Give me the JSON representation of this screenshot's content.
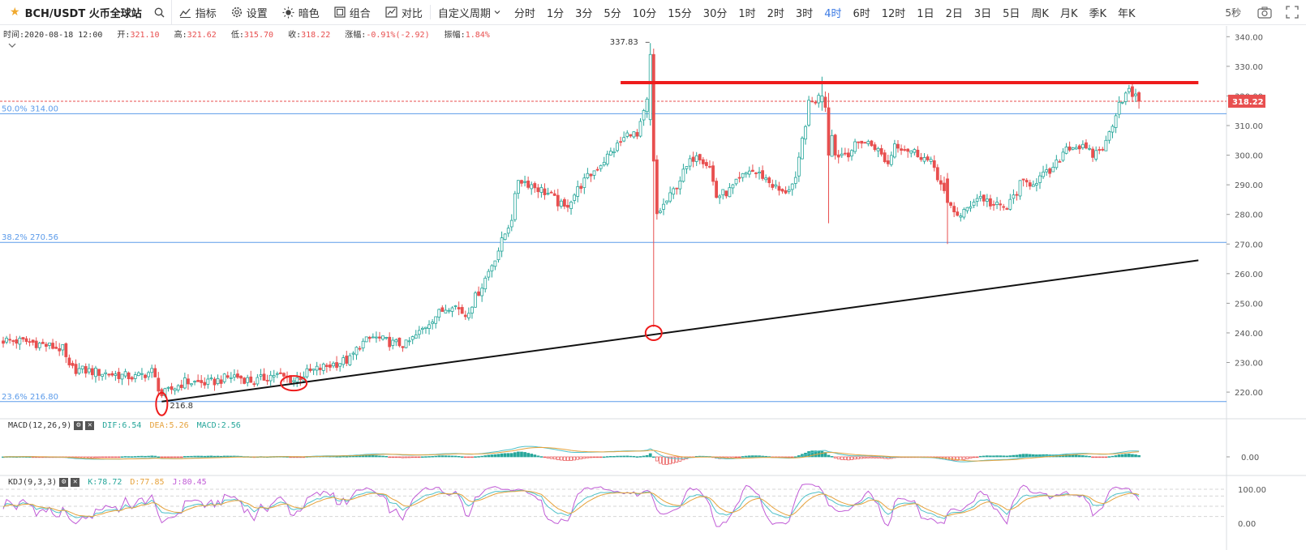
{
  "toolbar": {
    "symbol": "BCH/USDT 火币全球站",
    "buttons": [
      {
        "icon": "indicator-icon",
        "label": "指标"
      },
      {
        "icon": "gear-icon",
        "label": "设置"
      },
      {
        "icon": "sun-icon",
        "label": "暗色"
      },
      {
        "icon": "layout-icon",
        "label": "组合"
      },
      {
        "icon": "compare-icon",
        "label": "对比"
      }
    ],
    "custom_period": "自定义周期",
    "periods": [
      "分时",
      "1分",
      "3分",
      "5分",
      "10分",
      "15分",
      "30分",
      "1时",
      "2时",
      "3时",
      "4时",
      "6时",
      "12时",
      "1日",
      "2日",
      "3日",
      "5日",
      "周K",
      "月K",
      "季K",
      "年K"
    ],
    "active_period": "4时",
    "refresh": "5秒"
  },
  "info_bar": {
    "time_label": "时间:",
    "time": "2020-08-18 12:00",
    "open_label": "开:",
    "open": "321.10",
    "high_label": "高:",
    "high": "321.62",
    "low_label": "低:",
    "low": "315.70",
    "close_label": "收:",
    "close": "318.22",
    "change_label": "涨幅:",
    "change": "-0.91%(-2.92)",
    "amplitude_label": "振幅:",
    "amplitude": "1.84%"
  },
  "macd_legend": {
    "name": "MACD(12,26,9)",
    "dif": "DIF:6.54",
    "dea": "DEA:5.26",
    "macd": "MACD:2.56"
  },
  "kdj_legend": {
    "name": "KDJ(9,3,3)",
    "k": "K:78.72",
    "d": "D:77.85",
    "j": "J:80.45"
  },
  "colors": {
    "up": "#26a69a",
    "down": "#e84f4f",
    "fib": "#5b9bea",
    "trend": "#111111",
    "resistance": "#ee1c1c",
    "dif": "#4fc1c9",
    "dea": "#e6a23c",
    "k": "#4fc1c9",
    "d": "#e6a23c",
    "j": "#c05bd6"
  },
  "chart_data": {
    "type": "candlestick",
    "title": "BCH/USDT 火币全球站",
    "timeframe": "4时",
    "y_ticks": [
      "340.00",
      "330.00",
      "320.00",
      "310.00",
      "300.00",
      "290.00",
      "280.00",
      "270.00",
      "260.00",
      "250.00",
      "240.00",
      "230.00",
      "220.00"
    ],
    "ylim": [
      211,
      342
    ],
    "last_price": "318.22",
    "fib_levels": [
      {
        "label": "50.0% 314.00",
        "value": 314.0
      },
      {
        "label": "38.2% 270.56",
        "value": 270.56
      },
      {
        "label": "23.6% 216.80",
        "value": 216.8
      }
    ],
    "annotations": [
      {
        "label": "337.83",
        "value": 337.83
      },
      {
        "label": "216.8",
        "value": 216.8
      }
    ],
    "close_anchors": [
      [
        0,
        237.5
      ],
      [
        8,
        237.0
      ],
      [
        18,
        234.5
      ],
      [
        20,
        228.0
      ],
      [
        30,
        226.5
      ],
      [
        40,
        225.0
      ],
      [
        45,
        227.0
      ],
      [
        48,
        219.0
      ],
      [
        55,
        223.5
      ],
      [
        62,
        223.0
      ],
      [
        70,
        225.5
      ],
      [
        76,
        223.5
      ],
      [
        82,
        226.0
      ],
      [
        88,
        224.0
      ],
      [
        92,
        226.5
      ],
      [
        100,
        229.5
      ],
      [
        105,
        231.0
      ],
      [
        108,
        236.0
      ],
      [
        112,
        238.5
      ],
      [
        118,
        236.5
      ],
      [
        122,
        236.0
      ],
      [
        126,
        240.0
      ],
      [
        130,
        245.0
      ],
      [
        136,
        250.0
      ],
      [
        140,
        246.0
      ],
      [
        145,
        256.0
      ],
      [
        150,
        268.0
      ],
      [
        154,
        279.0
      ],
      [
        156,
        292.0
      ],
      [
        160,
        290.0
      ],
      [
        165,
        287.0
      ],
      [
        170,
        282.0
      ],
      [
        175,
        290.0
      ],
      [
        180,
        296.0
      ],
      [
        185,
        302.0
      ],
      [
        190,
        308.0
      ],
      [
        192,
        306.0
      ],
      [
        195,
        318.0
      ],
      [
        196,
        334.0
      ],
      [
        197,
        298.0
      ],
      [
        198,
        280.0
      ],
      [
        202,
        286.0
      ],
      [
        206,
        294.0
      ],
      [
        210,
        301.0
      ],
      [
        214,
        296.0
      ],
      [
        216,
        286.0
      ],
      [
        220,
        288.0
      ],
      [
        226,
        295.0
      ],
      [
        230,
        293.0
      ],
      [
        236,
        287.0
      ],
      [
        240,
        291.0
      ],
      [
        242,
        305.0
      ],
      [
        244,
        317.0
      ],
      [
        247,
        319.5
      ],
      [
        250,
        316.0
      ],
      [
        252,
        300.0
      ],
      [
        256,
        301.0
      ],
      [
        260,
        305.0
      ],
      [
        264,
        303.0
      ],
      [
        268,
        297.0
      ],
      [
        270,
        304.0
      ],
      [
        274,
        302.0
      ],
      [
        278,
        300.0
      ],
      [
        282,
        296.0
      ],
      [
        286,
        284.0
      ],
      [
        290,
        279.0
      ],
      [
        294,
        285.0
      ],
      [
        296,
        286.0
      ],
      [
        300,
        283.0
      ],
      [
        304,
        282.0
      ],
      [
        308,
        290.0
      ],
      [
        312,
        291.0
      ],
      [
        318,
        295.0
      ],
      [
        322,
        303.0
      ],
      [
        326,
        303.0
      ],
      [
        330,
        300.0
      ],
      [
        334,
        304.0
      ],
      [
        338,
        318.0
      ],
      [
        341,
        321.5
      ],
      [
        344,
        318.22
      ]
    ],
    "special_candles": [
      {
        "index": 196,
        "open": 312,
        "high": 337.83,
        "low": 310,
        "close": 334
      },
      {
        "index": 197,
        "open": 334,
        "high": 336,
        "low": 242,
        "close": 298
      },
      {
        "index": 248,
        "open": 318,
        "high": 326.5,
        "low": 315,
        "close": 320
      },
      {
        "index": 250,
        "open": 316,
        "high": 321,
        "low": 277,
        "close": 300
      },
      {
        "index": 286,
        "open": 292,
        "high": 294,
        "low": 270,
        "close": 284
      }
    ],
    "trend_line": {
      "from": [
        48,
        216.8
      ],
      "to": [
        362,
        264.5
      ]
    },
    "resistance_line": {
      "from": [
        187,
        324.5
      ],
      "to": [
        362,
        324.5
      ]
    },
    "circles": [
      {
        "index": 48,
        "value": 216.0
      },
      {
        "index": 88,
        "value": 223.0
      },
      {
        "index": 197,
        "value": 240.0
      }
    ],
    "macd": {
      "y_ticks": [
        "0.00"
      ]
    },
    "kdj": {
      "y_ticks": [
        "100.00",
        "0.00"
      ]
    }
  }
}
